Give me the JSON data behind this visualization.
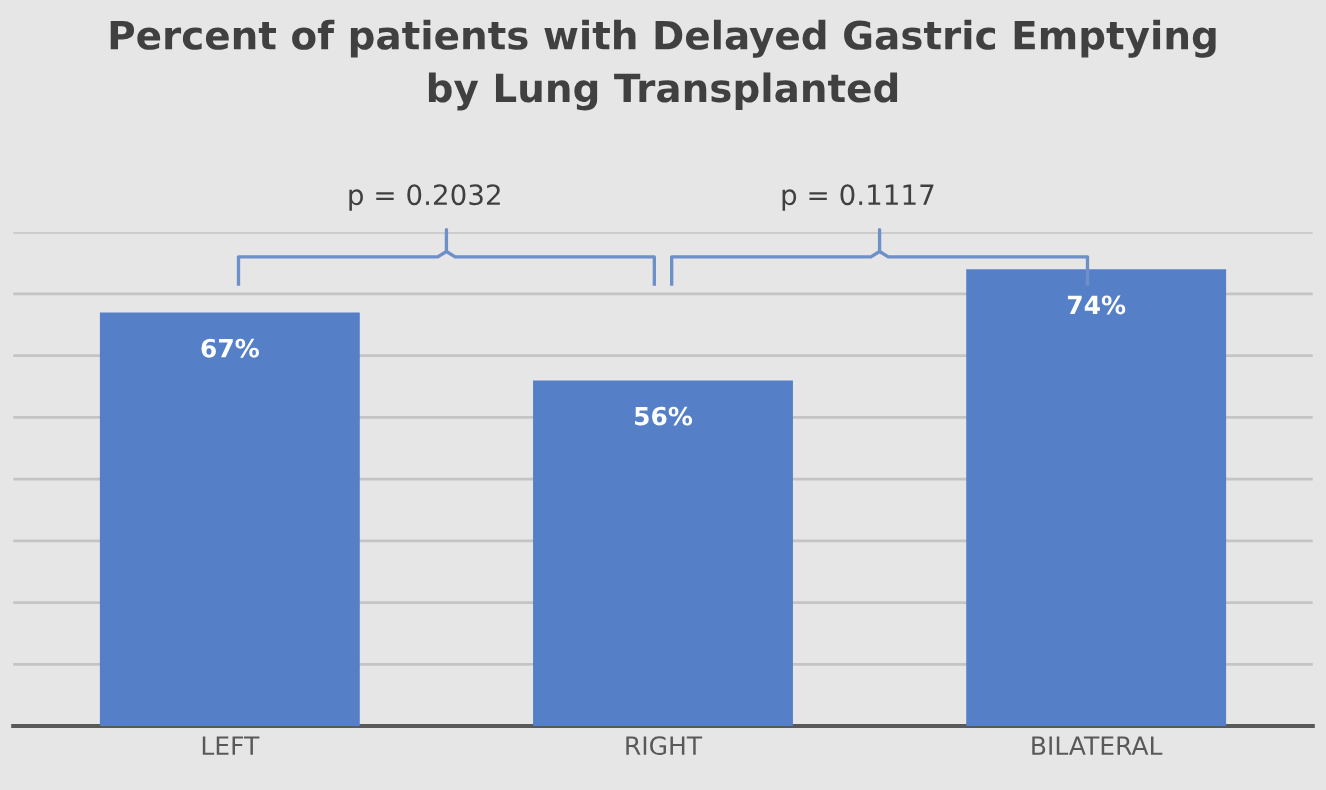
{
  "chart_data": {
    "type": "bar",
    "title": "Percent of patients with Delayed Gastric Emptying\nby Lung Transplanted",
    "categories": [
      "LEFT",
      "RIGHT",
      "BILATERAL"
    ],
    "values": [
      67,
      56,
      74
    ],
    "color": "#5580c8",
    "value_labels": [
      "67%",
      "56%",
      "74%"
    ],
    "ylim": [
      0,
      80
    ],
    "yticks": [
      {
        "value": 0,
        "label": null
      },
      {
        "value": 10,
        "label": null
      },
      {
        "value": 20,
        "label": null
      },
      {
        "value": 30,
        "label": null
      },
      {
        "value": 40,
        "label": null
      },
      {
        "value": 50,
        "label": null
      },
      {
        "value": 60,
        "label": null
      },
      {
        "value": 70,
        "label": null
      },
      {
        "value": 80,
        "label": null
      }
    ],
    "tick_labels": "x",
    "grid": "y",
    "legend": false,
    "annotations": [
      "p = 0.2032",
      "p = 0.1117"
    ]
  }
}
